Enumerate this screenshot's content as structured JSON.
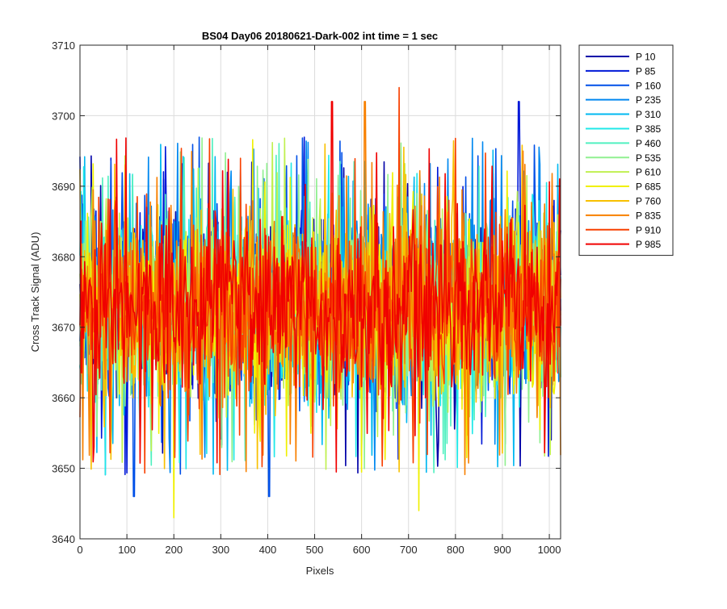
{
  "chart_data": {
    "type": "line",
    "title": "BS04 Day06 20180621-Dark-002 int time = 1 sec",
    "xlabel": "Pixels",
    "ylabel": "Cross Track Signal (ADU)",
    "xlim": [
      0,
      1024
    ],
    "ylim": [
      3640,
      3710
    ],
    "xticks": [
      0,
      100,
      200,
      300,
      400,
      500,
      600,
      700,
      800,
      900,
      1000
    ],
    "yticks": [
      3640,
      3650,
      3660,
      3670,
      3680,
      3690,
      3700,
      3710
    ],
    "grid": true,
    "legend_position": "outside-top-right",
    "signal_mean_approx": 3673,
    "signal_typical_range": [
      3656,
      3690
    ],
    "series": [
      {
        "name": "P 10",
        "color": "#0000a8"
      },
      {
        "name": "P 85",
        "color": "#0018d8"
      },
      {
        "name": "P 160",
        "color": "#0050e8"
      },
      {
        "name": "P 235",
        "color": "#0088f0"
      },
      {
        "name": "P 310",
        "color": "#00b8f0"
      },
      {
        "name": "P 385",
        "color": "#20e8e8"
      },
      {
        "name": "P 460",
        "color": "#50f0c0"
      },
      {
        "name": "P 535",
        "color": "#90f090"
      },
      {
        "name": "P 610",
        "color": "#c0f050"
      },
      {
        "name": "P 685",
        "color": "#f0f000"
      },
      {
        "name": "P 760",
        "color": "#f8c000"
      },
      {
        "name": "P 835",
        "color": "#f88000"
      },
      {
        "name": "P 910",
        "color": "#f84000"
      },
      {
        "name": "P 985",
        "color": "#f00000"
      }
    ],
    "notable_peaks": [
      {
        "series": "P 910",
        "x": 680,
        "y": 3704
      },
      {
        "series": "P 835",
        "x": 607,
        "y": 3702
      },
      {
        "series": "P 985",
        "x": 537,
        "y": 3702
      },
      {
        "series": "P 85",
        "x": 935,
        "y": 3702
      },
      {
        "series": "P 685",
        "x": 722,
        "y": 3644
      },
      {
        "series": "P 685",
        "x": 200,
        "y": 3643
      },
      {
        "series": "P 160",
        "x": 115,
        "y": 3646
      },
      {
        "series": "P 160",
        "x": 403,
        "y": 3646
      }
    ]
  }
}
